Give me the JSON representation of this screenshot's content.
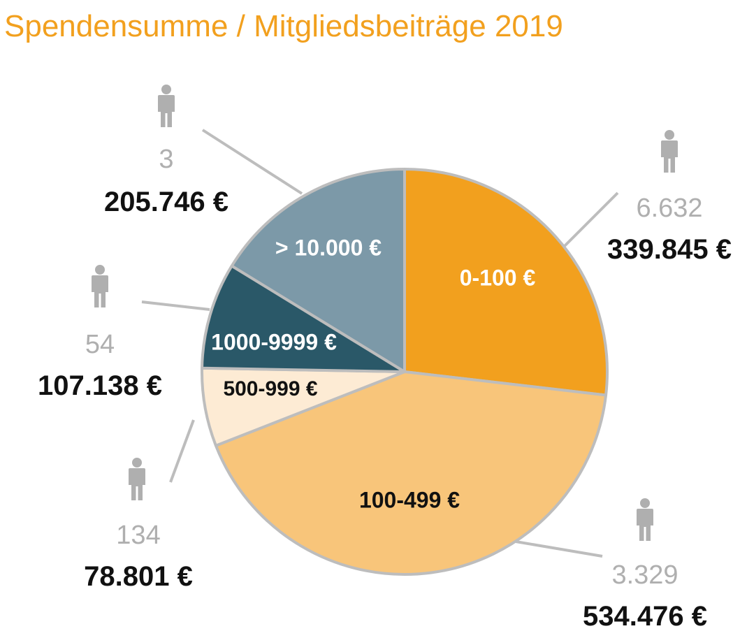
{
  "chart_data": {
    "type": "pie",
    "title": "Spendensumme / Mitgliedsbeiträge 2019",
    "slices": [
      {
        "label": "0-100 €",
        "count": "6.632",
        "amount_label": "339.845 €",
        "value": 339845,
        "color": "#F2A01E",
        "label_color": "#ffffff"
      },
      {
        "label": "100-499 €",
        "count": "3.329",
        "amount_label": "534.476 €",
        "value": 534476,
        "color": "#F8C57A",
        "label_color": "#111111"
      },
      {
        "label": "500-999 €",
        "count": "134",
        "amount_label": "78.801 €",
        "value": 78801,
        "color": "#FDEBD4",
        "label_color": "#111111"
      },
      {
        "label": "1000-9999 €",
        "count": "54",
        "amount_label": "107.138 €",
        "value": 107138,
        "color": "#2A5868",
        "label_color": "#ffffff"
      },
      {
        "label": "> 10.000 €",
        "count": "3",
        "amount_label": "205.746 €",
        "value": 205746,
        "color": "#7C99A8",
        "label_color": "#ffffff"
      }
    ]
  },
  "colors": {
    "title": "#F2A01E",
    "count_text": "#AFAFAF",
    "amount_text": "#111111",
    "outline": "#BDBDBD",
    "person_icon": "#AFAFAF"
  },
  "icons": {
    "person": "person-icon"
  }
}
